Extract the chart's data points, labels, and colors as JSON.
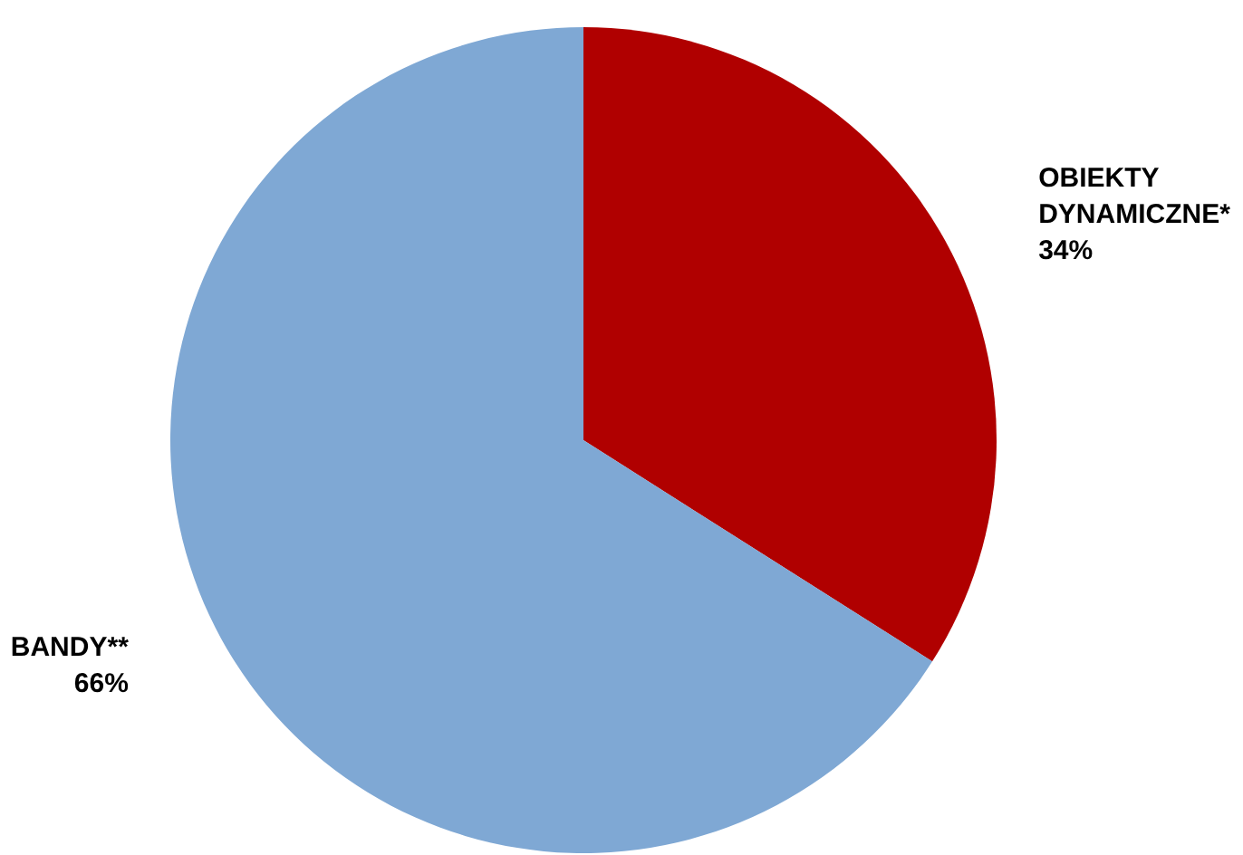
{
  "chart_data": {
    "type": "pie",
    "categories": [
      "OBIEKTY DYNAMICZNE*",
      "BANDY**"
    ],
    "values": [
      34,
      66
    ],
    "value_labels": [
      "34%",
      "66%"
    ],
    "colors": [
      "#b00000",
      "#7fa8d4"
    ],
    "legend": false
  }
}
